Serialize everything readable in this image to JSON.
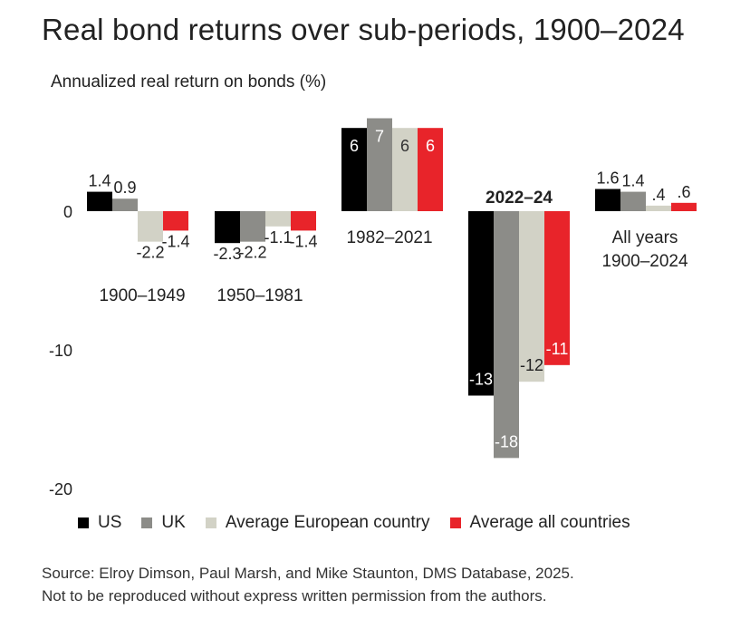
{
  "title": "Real bond returns over sub-periods, 1900–2024",
  "ylabel": "Annualized real return on bonds (%)",
  "legend": [
    {
      "name": "US",
      "color": "#000000"
    },
    {
      "name": "UK",
      "color": "#8c8c88"
    },
    {
      "name": "Average European country",
      "color": "#d2d2c6"
    },
    {
      "name": "Average all countries",
      "color": "#e8242a"
    }
  ],
  "source": {
    "line1": "Source: Elroy Dimson, Paul Marsh, and Mike Staunton, DMS Database, 2025.",
    "line2": "Not to be reproduced without express written permission from the authors."
  },
  "chart_data": {
    "type": "bar",
    "categories": [
      "1900–1949",
      "1950–1981",
      "1982–2021",
      "2022–24",
      "All years 1900–2024"
    ],
    "category_labels": [
      {
        "lines": [
          "1900–1949"
        ],
        "bold": false,
        "placement": "below"
      },
      {
        "lines": [
          "1950–1981"
        ],
        "bold": false,
        "placement": "below"
      },
      {
        "lines": [
          "1982–2021"
        ],
        "bold": false,
        "placement": "below-axis"
      },
      {
        "lines": [
          "2022–24"
        ],
        "bold": true,
        "placement": "above-axis"
      },
      {
        "lines": [
          "All years",
          "1900–2024"
        ],
        "bold": false,
        "placement": "below-axis"
      }
    ],
    "series": [
      {
        "name": "US",
        "color": "#000000",
        "values": [
          1.4,
          -2.3,
          6.0,
          -13.3,
          1.6
        ],
        "labels": [
          "1.4",
          "-2.3",
          "6",
          "-13",
          "1.6"
        ]
      },
      {
        "name": "UK",
        "color": "#8c8c88",
        "values": [
          0.9,
          -2.2,
          6.7,
          -17.8,
          1.4
        ],
        "labels": [
          "0.9",
          "-2.2",
          "7",
          "-18",
          "1.4"
        ]
      },
      {
        "name": "Average European country",
        "color": "#d2d2c6",
        "values": [
          -2.2,
          -1.1,
          6.0,
          -12.3,
          0.4
        ],
        "labels": [
          "-2.2",
          "-1.1",
          "6",
          "-12",
          ".4"
        ]
      },
      {
        "name": "Average all countries",
        "color": "#e8242a",
        "values": [
          -1.4,
          -1.4,
          6.0,
          -11.1,
          0.6
        ],
        "labels": [
          "-1.4",
          "-1.4",
          "6",
          "-11",
          ".6"
        ]
      }
    ],
    "ylim": [
      -20,
      7
    ],
    "yticks": [
      0,
      -10,
      -20
    ],
    "ytick_labels": [
      "0",
      "-10",
      "-20"
    ],
    "grid": false,
    "legend_position": "bottom"
  }
}
